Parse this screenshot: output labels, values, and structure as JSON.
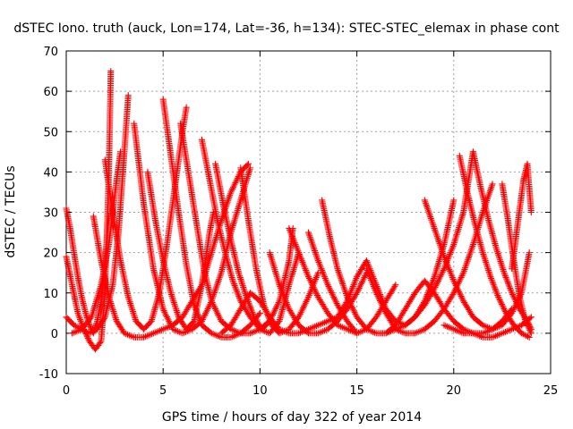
{
  "chart_data": {
    "type": "scatter",
    "title": "dSTEC Iono. truth (auck, Lon=174, Lat=-36, h=134): STEC-STEC_elemax in phase cont",
    "xlabel": "GPS time / hours of day 322 of year 2014",
    "ylabel": "dSTEC  / TECUs",
    "xlim": [
      0,
      25
    ],
    "ylim": [
      -10,
      70
    ],
    "x_ticks": [
      "0",
      "5",
      "10",
      "15",
      "20",
      "25"
    ],
    "y_ticks": [
      "-10",
      "0",
      "10",
      "20",
      "30",
      "40",
      "50",
      "60",
      "70"
    ],
    "grid": true,
    "marker": "+",
    "color": "#ff0000",
    "series": [
      {
        "x": [
          0.0,
          0.2,
          0.4,
          0.6,
          0.8,
          1.0,
          1.2,
          1.4,
          1.6,
          1.8,
          2.0,
          2.2
        ],
        "y": [
          31,
          26,
          20,
          14,
          9,
          5,
          2,
          0,
          3,
          8,
          18,
          29
        ]
      },
      {
        "x": [
          0.0,
          0.3,
          0.6,
          0.9,
          1.2,
          1.5,
          1.8,
          2.0,
          2.2,
          2.3
        ],
        "y": [
          19,
          12,
          5,
          1,
          -2,
          -4,
          -2,
          10,
          40,
          65
        ]
      },
      {
        "x": [
          0.0,
          0.4,
          0.8,
          1.2,
          1.6,
          2.0,
          2.4,
          2.7,
          3.0,
          3.2
        ],
        "y": [
          4,
          2,
          1,
          0,
          1,
          4,
          12,
          25,
          45,
          59
        ]
      },
      {
        "x": [
          0.3,
          0.8,
          1.3,
          1.8,
          2.2,
          2.6,
          2.8
        ],
        "y": [
          0,
          1,
          4,
          12,
          22,
          38,
          45
        ]
      },
      {
        "x": [
          1.4,
          1.8,
          2.2,
          2.6,
          3.0,
          3.5,
          4.0,
          4.5,
          5.0,
          5.5,
          6.0,
          6.5,
          7.0,
          7.5,
          8.0,
          8.5,
          9.0,
          9.4
        ],
        "y": [
          29,
          18,
          9,
          3,
          0,
          -1,
          -1,
          0,
          1,
          2,
          4,
          8,
          12,
          20,
          28,
          35,
          40,
          42
        ]
      },
      {
        "x": [
          2.0,
          2.4,
          2.8,
          3.2,
          3.6,
          4.0,
          4.4,
          4.8,
          5.2,
          5.6,
          6.0,
          6.2
        ],
        "y": [
          43,
          30,
          18,
          9,
          3,
          1,
          3,
          10,
          22,
          36,
          50,
          56
        ]
      },
      {
        "x": [
          3.5,
          4.0,
          4.5,
          5.0,
          5.5,
          6.0,
          6.5,
          7.0,
          7.5,
          8.0,
          8.5,
          9.0,
          9.5
        ],
        "y": [
          52,
          32,
          16,
          6,
          1,
          0,
          1,
          3,
          8,
          15,
          25,
          33,
          41
        ]
      },
      {
        "x": [
          4.2,
          4.6,
          5.0,
          5.4,
          5.8,
          6.2,
          6.6,
          7.0,
          7.4,
          7.6
        ],
        "y": [
          40,
          28,
          18,
          10,
          4,
          1,
          3,
          12,
          25,
          30
        ]
      },
      {
        "x": [
          5.0,
          5.4,
          5.8,
          6.2,
          6.6,
          7.0,
          7.5,
          8.0,
          8.5,
          9.0,
          9.5,
          10.0
        ],
        "y": [
          58,
          44,
          30,
          17,
          7,
          2,
          0,
          -1,
          -1,
          0,
          2,
          5
        ]
      },
      {
        "x": [
          5.9,
          6.3,
          6.7,
          7.1,
          7.5,
          8.0,
          8.5,
          9.0,
          9.5,
          10.0,
          10.5
        ],
        "y": [
          52,
          40,
          28,
          16,
          8,
          3,
          1,
          0,
          0,
          1,
          3
        ]
      },
      {
        "x": [
          7.0,
          7.4,
          7.8,
          8.2,
          8.6,
          9.0,
          9.5,
          10.0,
          10.5,
          11.0,
          11.5,
          12.0
        ],
        "y": [
          48,
          38,
          28,
          20,
          13,
          8,
          4,
          1,
          0,
          3,
          12,
          20
        ]
      },
      {
        "x": [
          7.7,
          8.1,
          8.5,
          8.9,
          9.3,
          9.7,
          10.1,
          10.5,
          11.0,
          11.5,
          11.7
        ],
        "y": [
          42,
          32,
          23,
          15,
          9,
          4,
          1,
          3,
          8,
          18,
          26
        ]
      },
      {
        "x": [
          8.0,
          8.5,
          9.0,
          9.5,
          10.0,
          10.5,
          11.0,
          11.5,
          12.0,
          12.5,
          13.0,
          13.5,
          14.0
        ],
        "y": [
          0,
          2,
          6,
          10,
          8,
          4,
          1,
          0,
          0,
          1,
          2,
          3,
          4
        ]
      },
      {
        "x": [
          9.0,
          9.4,
          9.8,
          10.2,
          10.6,
          11.0,
          11.5,
          12.0,
          12.5,
          13.0
        ],
        "y": [
          41,
          28,
          16,
          7,
          2,
          0,
          1,
          4,
          9,
          15
        ]
      },
      {
        "x": [
          10.5,
          11.0,
          11.5,
          12.0,
          12.5,
          13.0,
          13.5,
          14.0,
          14.5,
          15.0,
          15.5
        ],
        "y": [
          20,
          12,
          6,
          2,
          0,
          0,
          1,
          3,
          6,
          10,
          15
        ]
      },
      {
        "x": [
          11.5,
          12.0,
          12.5,
          13.0,
          13.5,
          14.0,
          14.5,
          15.0,
          15.5,
          16.0,
          16.5,
          17.0
        ],
        "y": [
          26,
          20,
          14,
          9,
          5,
          2,
          1,
          0,
          1,
          4,
          8,
          12
        ]
      },
      {
        "x": [
          12.5,
          13.0,
          13.5,
          14.0,
          14.5,
          15.0
        ],
        "y": [
          25,
          18,
          12,
          7,
          3,
          0
        ]
      },
      {
        "x": [
          13.2,
          13.6,
          14.0,
          14.5,
          15.0,
          15.5,
          16.0,
          16.5,
          17.0,
          17.5,
          18.0,
          18.5,
          19.0,
          19.5,
          20.0,
          20.5,
          21.0
        ],
        "y": [
          33,
          24,
          16,
          9,
          4,
          1,
          0,
          0,
          1,
          2,
          4,
          7,
          11,
          16,
          22,
          30,
          45
        ]
      },
      {
        "x": [
          14.0,
          14.5,
          15.0,
          15.5,
          16.0,
          16.5,
          17.0,
          17.5,
          18.0,
          18.5,
          19.0,
          19.5,
          20.0
        ],
        "y": [
          4,
          8,
          14,
          18,
          12,
          6,
          3,
          2,
          4,
          8,
          14,
          22,
          33
        ]
      },
      {
        "x": [
          15.5,
          16.0,
          16.5,
          17.0,
          17.5,
          18.0,
          18.5,
          19.0,
          19.5,
          20.0,
          20.5,
          21.0,
          21.5,
          22.0
        ],
        "y": [
          16,
          10,
          5,
          1,
          0,
          0,
          1,
          3,
          6,
          10,
          15,
          22,
          30,
          37
        ]
      },
      {
        "x": [
          16.5,
          17.0,
          17.5,
          18.0,
          18.5,
          19.0,
          19.5,
          20.0,
          20.5,
          21.0,
          21.5,
          22.0,
          22.5,
          23.0
        ],
        "y": [
          0,
          2,
          6,
          10,
          13,
          10,
          6,
          3,
          1,
          0,
          0,
          1,
          3,
          6
        ]
      },
      {
        "x": [
          18.5,
          19.0,
          19.5,
          20.0,
          20.5,
          21.0,
          21.5,
          22.0,
          22.5,
          23.0,
          23.5,
          23.9
        ],
        "y": [
          33,
          26,
          19,
          13,
          8,
          4,
          2,
          1,
          2,
          5,
          10,
          20
        ]
      },
      {
        "x": [
          19.5,
          20.0,
          20.5,
          21.0,
          21.5,
          22.0,
          22.5,
          23.0,
          23.5,
          24.0
        ],
        "y": [
          2,
          1,
          0,
          0,
          -1,
          -1,
          0,
          1,
          2,
          4
        ]
      },
      {
        "x": [
          20.3,
          20.7,
          21.1,
          21.5,
          21.9,
          22.3,
          22.7,
          23.1,
          23.5,
          23.9
        ],
        "y": [
          44,
          35,
          27,
          20,
          14,
          9,
          5,
          2,
          0,
          -1
        ]
      },
      {
        "x": [
          21.0,
          21.4,
          21.8,
          22.2,
          22.6,
          23.0,
          23.4,
          23.8,
          24.0
        ],
        "y": [
          45,
          36,
          28,
          21,
          15,
          10,
          6,
          3,
          1
        ]
      },
      {
        "x": [
          22.5,
          22.8,
          23.1,
          23.4,
          23.7,
          24.0
        ],
        "y": [
          37,
          28,
          18,
          9,
          3,
          0
        ]
      },
      {
        "x": [
          23.0,
          23.3,
          23.6,
          23.8,
          24.0
        ],
        "y": [
          16,
          27,
          38,
          42,
          30
        ]
      }
    ]
  }
}
